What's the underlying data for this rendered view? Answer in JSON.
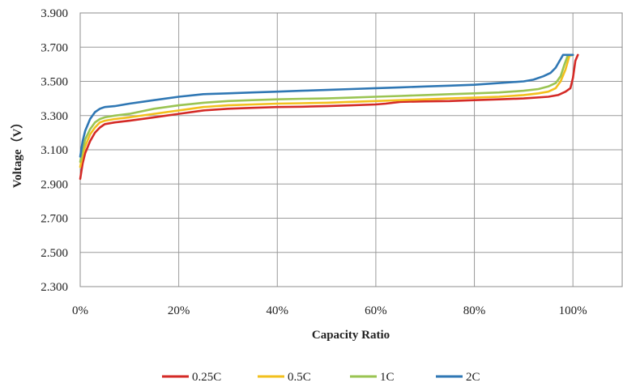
{
  "chart_data": {
    "type": "line",
    "title": "",
    "xlabel": "Capacity Ratio",
    "ylabel": "Voltage（V）",
    "xlim": [
      0,
      110
    ],
    "ylim": [
      2.3,
      3.9
    ],
    "x_ticks": [
      {
        "value": 0,
        "label": "0%"
      },
      {
        "value": 20,
        "label": "20%"
      },
      {
        "value": 40,
        "label": "40%"
      },
      {
        "value": 60,
        "label": "60%"
      },
      {
        "value": 80,
        "label": "80%"
      },
      {
        "value": 100,
        "label": "100%"
      }
    ],
    "y_ticks": [
      {
        "value": 2.3,
        "label": "2.300"
      },
      {
        "value": 2.5,
        "label": "2.500"
      },
      {
        "value": 2.7,
        "label": "2.700"
      },
      {
        "value": 2.9,
        "label": "2.900"
      },
      {
        "value": 3.1,
        "label": "3.100"
      },
      {
        "value": 3.3,
        "label": "3.300"
      },
      {
        "value": 3.5,
        "label": "3.500"
      },
      {
        "value": 3.7,
        "label": "3.700"
      },
      {
        "value": 3.9,
        "label": "3.900"
      }
    ],
    "grid": true,
    "legend_position": "bottom",
    "series": [
      {
        "name": "0.25C",
        "color": "#d42a26",
        "x": [
          0,
          0.5,
          1,
          2,
          3,
          4,
          5,
          7,
          10,
          15,
          20,
          25,
          30,
          35,
          40,
          45,
          50,
          55,
          60,
          62,
          65,
          70,
          75,
          80,
          85,
          90,
          95,
          97,
          98.5,
          99.5,
          100,
          100.5,
          101
        ],
        "y": [
          2.93,
          3.02,
          3.08,
          3.15,
          3.2,
          3.23,
          3.25,
          3.26,
          3.27,
          3.29,
          3.31,
          3.33,
          3.34,
          3.345,
          3.35,
          3.352,
          3.355,
          3.36,
          3.365,
          3.37,
          3.38,
          3.383,
          3.385,
          3.39,
          3.395,
          3.4,
          3.41,
          3.42,
          3.44,
          3.46,
          3.52,
          3.62,
          3.655
        ]
      },
      {
        "name": "0.5C",
        "color": "#f2c01d",
        "x": [
          0,
          0.5,
          1,
          2,
          3,
          4,
          5,
          7,
          10,
          15,
          20,
          25,
          30,
          35,
          40,
          45,
          50,
          55,
          60,
          65,
          70,
          75,
          80,
          85,
          90,
          93,
          95,
          96.5,
          97.5,
          98.5,
          99.3,
          100
        ],
        "y": [
          3.0,
          3.07,
          3.12,
          3.19,
          3.23,
          3.26,
          3.27,
          3.28,
          3.29,
          3.31,
          3.33,
          3.35,
          3.36,
          3.365,
          3.37,
          3.372,
          3.375,
          3.38,
          3.385,
          3.39,
          3.395,
          3.4,
          3.405,
          3.41,
          3.42,
          3.43,
          3.44,
          3.46,
          3.5,
          3.57,
          3.65,
          3.655
        ]
      },
      {
        "name": "1C",
        "color": "#9ac452",
        "x": [
          0,
          0.5,
          1,
          2,
          3,
          4,
          5,
          7,
          10,
          15,
          20,
          25,
          30,
          35,
          40,
          45,
          50,
          55,
          60,
          65,
          70,
          75,
          80,
          85,
          90,
          93,
          95,
          96.5,
          97.5,
          98.3,
          99,
          100
        ],
        "y": [
          3.03,
          3.1,
          3.16,
          3.22,
          3.26,
          3.28,
          3.29,
          3.3,
          3.31,
          3.34,
          3.36,
          3.375,
          3.385,
          3.39,
          3.395,
          3.398,
          3.4,
          3.405,
          3.41,
          3.415,
          3.42,
          3.425,
          3.43,
          3.435,
          3.445,
          3.455,
          3.47,
          3.49,
          3.53,
          3.6,
          3.655,
          3.655
        ]
      },
      {
        "name": "2C",
        "color": "#2f77b4",
        "x": [
          0,
          0.5,
          1,
          2,
          3,
          4,
          5,
          7,
          10,
          15,
          20,
          25,
          30,
          35,
          40,
          45,
          50,
          55,
          60,
          65,
          70,
          75,
          80,
          85,
          90,
          92,
          94,
          95.5,
          96.5,
          97.3,
          98,
          98.5,
          100
        ],
        "y": [
          3.06,
          3.15,
          3.21,
          3.28,
          3.32,
          3.34,
          3.35,
          3.355,
          3.37,
          3.39,
          3.41,
          3.425,
          3.43,
          3.435,
          3.44,
          3.445,
          3.45,
          3.455,
          3.46,
          3.465,
          3.47,
          3.475,
          3.48,
          3.49,
          3.5,
          3.51,
          3.53,
          3.55,
          3.58,
          3.62,
          3.655,
          3.655,
          3.655
        ]
      }
    ]
  }
}
